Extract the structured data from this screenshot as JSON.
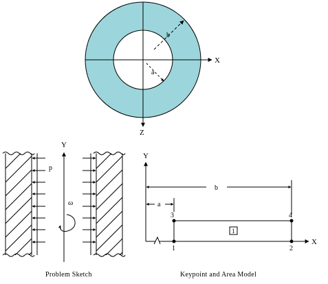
{
  "colors": {
    "annulus_fill": "#9cd6dc",
    "stroke": "#000000",
    "background": "#ffffff"
  },
  "top_figure": {
    "axis_x_label": "X",
    "axis_z_label": "Z",
    "outer_radius_label": "b",
    "inner_radius_label": "a"
  },
  "problem_sketch": {
    "axis_y_label": "Y",
    "pressure_label": "p",
    "omega_label": "ω",
    "caption": "Problem Sketch"
  },
  "keypoint_model": {
    "axis_y_label": "Y",
    "axis_x_label": "X",
    "dim_b_label": "b",
    "dim_a_label": "a",
    "keypoints": [
      "1",
      "2",
      "3",
      "4"
    ],
    "area_label": "1",
    "caption": "Keypoint and Area Model"
  }
}
